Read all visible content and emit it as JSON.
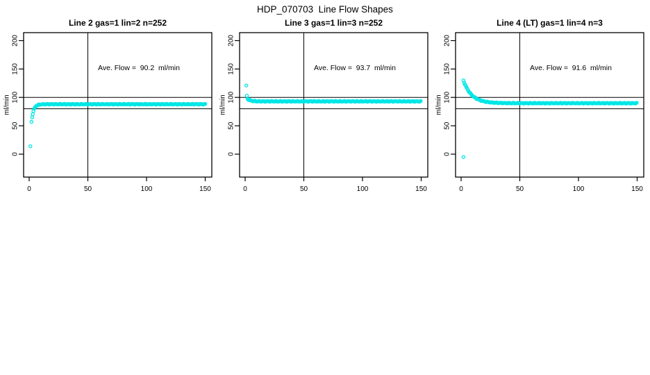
{
  "page": {
    "title": "HDP_070703  Line Flow Shapes",
    "background": "#ffffff"
  },
  "style": {
    "point_color": "#00e6e6",
    "axis_color": "#000000"
  },
  "chart_data": [
    {
      "type": "scatter",
      "title": "Line 2 gas=1 lin=2 n=252",
      "annotation": "Ave. Flow =  90.2  ml/min",
      "ave_flow_ml_min": 90.2,
      "n_points": 252,
      "xlabel": "",
      "ylabel": "ml/min",
      "xlim": [
        -5,
        156
      ],
      "ylim": [
        -40,
        215
      ],
      "x_ticks": [
        0,
        50,
        100,
        150
      ],
      "y_ticks": [
        0,
        50,
        100,
        150,
        200
      ],
      "h_ref_lines": [
        80,
        100
      ],
      "v_ref_lines": [
        50
      ],
      "grid": false,
      "legend": "none",
      "points": [
        [
          1,
          14
        ],
        [
          2,
          57
        ],
        [
          2.6,
          65
        ]
      ],
      "trend": {
        "x_from": 3,
        "x_to": 150,
        "x_step": 0.6,
        "plateau": 88,
        "amplitude": -17,
        "tau": 1.8,
        "x0": 3
      }
    },
    {
      "type": "scatter",
      "title": "Line 3 gas=1 lin=3 n=252",
      "annotation": "Ave. Flow =  93.7  ml/min",
      "ave_flow_ml_min": 93.7,
      "n_points": 252,
      "xlabel": "",
      "ylabel": "ml/min",
      "xlim": [
        -5,
        156
      ],
      "ylim": [
        -40,
        215
      ],
      "x_ticks": [
        0,
        50,
        100,
        150
      ],
      "y_ticks": [
        0,
        50,
        100,
        150,
        200
      ],
      "h_ref_lines": [
        80,
        100
      ],
      "v_ref_lines": [
        50
      ],
      "grid": false,
      "legend": "none",
      "points": [
        [
          1,
          121
        ],
        [
          1.5,
          103
        ]
      ],
      "trend": {
        "x_from": 2,
        "x_to": 150,
        "x_step": 0.6,
        "plateau": 93,
        "amplitude": 4.5,
        "tau": 2.5,
        "x0": 2
      }
    },
    {
      "type": "scatter",
      "title": "Line 4 (LT) gas=1 lin=4 n=3",
      "annotation": "Ave. Flow =  91.6  ml/min",
      "ave_flow_ml_min": 91.6,
      "n_points": 3,
      "xlabel": "",
      "ylabel": "ml/min",
      "xlim": [
        -5,
        156
      ],
      "ylim": [
        -40,
        215
      ],
      "x_ticks": [
        0,
        50,
        100,
        150
      ],
      "y_ticks": [
        0,
        50,
        100,
        150,
        200
      ],
      "h_ref_lines": [
        80,
        100
      ],
      "v_ref_lines": [
        50
      ],
      "grid": false,
      "legend": "none",
      "points": [
        [
          2,
          -5
        ]
      ],
      "trend": {
        "x_from": 2,
        "x_to": 150,
        "x_step": 0.6,
        "plateau": 89.8,
        "amplitude": 40,
        "tau": 7,
        "x0": 2
      }
    }
  ]
}
